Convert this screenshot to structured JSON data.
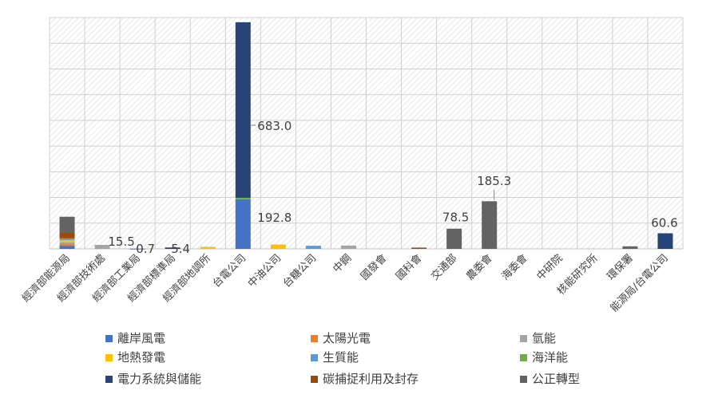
{
  "chart_data": {
    "type": "bar",
    "stacked": true,
    "title": "",
    "xlabel": "",
    "ylabel": "",
    "ylim": [
      0,
      900
    ],
    "grid": true,
    "legend_position": "bottom",
    "categories": [
      "經濟部能源局",
      "經濟部技術處",
      "經濟部工業局",
      "經濟部標準局",
      "經濟部地調所",
      "台電公司",
      "中油公司",
      "台糖公司",
      "中鋼",
      "國發會",
      "國科會",
      "交通部",
      "農委會",
      "海委會",
      "中研院",
      "核能研究所",
      "環保署",
      "能源局/台電公司"
    ],
    "series": [
      {
        "name": "離岸風電",
        "color": "#4472C4",
        "values": [
          12,
          0,
          0,
          0,
          0,
          192.8,
          0,
          0,
          0,
          0,
          0,
          0,
          0,
          0,
          0,
          0,
          0,
          0
        ]
      },
      {
        "name": "太陽光電",
        "color": "#ED7D31",
        "values": [
          8,
          0,
          0,
          0,
          0,
          0,
          0,
          0,
          0,
          0,
          0,
          0,
          0,
          0,
          0,
          0,
          0,
          0
        ]
      },
      {
        "name": "氫能",
        "color": "#A5A5A5",
        "values": [
          6,
          15.5,
          0,
          0,
          0,
          0,
          0,
          0,
          13,
          0,
          0,
          0,
          0,
          0,
          0,
          0,
          0,
          0
        ]
      },
      {
        "name": "地熱發電",
        "color": "#FFC000",
        "values": [
          8,
          0,
          0,
          0,
          8,
          0,
          17,
          0,
          0,
          0,
          0,
          0,
          0,
          0,
          0,
          0,
          0,
          0
        ]
      },
      {
        "name": "生質能",
        "color": "#5B9BD5",
        "values": [
          3,
          0,
          0,
          0,
          0,
          0,
          0,
          12,
          0,
          0,
          0,
          0,
          0,
          0,
          0,
          0,
          0,
          0
        ]
      },
      {
        "name": "海洋能",
        "color": "#70AD47",
        "values": [
          4,
          0,
          0,
          0,
          0,
          6,
          0,
          0,
          0,
          0,
          0,
          0,
          0,
          0,
          0,
          0,
          0,
          0
        ]
      },
      {
        "name": "電力系統與儲能",
        "color": "#264478",
        "values": [
          0,
          0,
          0.7,
          5.4,
          0,
          683.0,
          0,
          0,
          0,
          0,
          0,
          0,
          0,
          0,
          0,
          0,
          0,
          60.6
        ]
      },
      {
        "name": "碳捕捉利用及封存",
        "color": "#9E480E",
        "values": [
          24,
          0,
          0,
          0,
          0,
          0,
          0,
          0,
          0,
          0,
          5,
          0,
          0,
          0,
          0,
          0,
          0,
          0
        ]
      },
      {
        "name": "公正轉型",
        "color": "#636363",
        "values": [
          60,
          0,
          0,
          0,
          0,
          0,
          0,
          0,
          0,
          0,
          0,
          78.5,
          185.3,
          0,
          0,
          0,
          10,
          0
        ]
      }
    ],
    "data_labels": [
      {
        "category_index": 1,
        "text": "15.5"
      },
      {
        "category_index": 2,
        "text": "0.7"
      },
      {
        "category_index": 3,
        "text": "5.4"
      },
      {
        "category_index": 5,
        "text": "683.0"
      },
      {
        "category_index": 5,
        "text": "192.8"
      },
      {
        "category_index": 11,
        "text": "78.5"
      },
      {
        "category_index": 12,
        "text": "185.3"
      },
      {
        "category_index": 17,
        "text": "60.6"
      }
    ]
  }
}
